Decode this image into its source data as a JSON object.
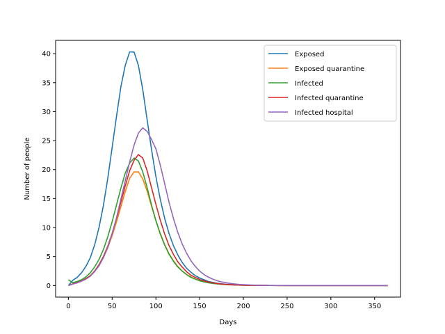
{
  "chart_data": {
    "type": "line",
    "xlabel": "Days",
    "ylabel": "Number of people",
    "xlim": [
      -14.6,
      379.6
    ],
    "ylim": [
      -2.0,
      42.3
    ],
    "xticks": [
      0,
      50,
      100,
      150,
      200,
      250,
      300,
      350
    ],
    "yticks": [
      0,
      5,
      10,
      15,
      20,
      25,
      30,
      35,
      40
    ],
    "grid": false,
    "legend_position": "top-right",
    "x": [
      0,
      5,
      10,
      15,
      20,
      25,
      30,
      35,
      40,
      45,
      50,
      55,
      60,
      65,
      70,
      75,
      80,
      85,
      90,
      95,
      100,
      105,
      110,
      115,
      120,
      125,
      130,
      135,
      140,
      145,
      150,
      155,
      160,
      165,
      170,
      175,
      180,
      185,
      190,
      195,
      200,
      210,
      220,
      230,
      240,
      250,
      260,
      270,
      280,
      290,
      300,
      310,
      320,
      330,
      340,
      350,
      360,
      365
    ],
    "series": [
      {
        "name": "Exposed",
        "color": "#1f77b4",
        "values": [
          0.0,
          0.9,
          1.4,
          2.2,
          3.3,
          4.8,
          7.0,
          10.0,
          13.8,
          18.5,
          23.8,
          29.2,
          34.3,
          38.0,
          40.3,
          40.3,
          38.0,
          33.8,
          28.6,
          23.5,
          18.8,
          14.9,
          11.6,
          9.0,
          6.9,
          5.3,
          4.0,
          3.0,
          2.3,
          1.7,
          1.3,
          1.0,
          0.7,
          0.55,
          0.4,
          0.3,
          0.22,
          0.17,
          0.12,
          0.09,
          0.07,
          0.04,
          0.02,
          0.01,
          0.01,
          0.0,
          0.0,
          0.0,
          0.0,
          0.0,
          0.0,
          0.0,
          0.0,
          0.0,
          0.0,
          0.0,
          0.0,
          0.0
        ]
      },
      {
        "name": "Exposed quarantine",
        "color": "#ff7f0e",
        "values": [
          0.0,
          0.3,
          0.5,
          0.8,
          1.2,
          1.7,
          2.5,
          3.5,
          4.8,
          6.5,
          8.6,
          11.0,
          13.6,
          16.2,
          18.5,
          19.6,
          19.6,
          18.4,
          16.3,
          13.7,
          11.2,
          9.0,
          7.1,
          5.5,
          4.3,
          3.3,
          2.5,
          1.9,
          1.5,
          1.1,
          0.85,
          0.65,
          0.5,
          0.38,
          0.29,
          0.22,
          0.17,
          0.13,
          0.1,
          0.07,
          0.05,
          0.03,
          0.02,
          0.01,
          0.0,
          0.0,
          0.0,
          0.0,
          0.0,
          0.0,
          0.0,
          0.0,
          0.0,
          0.0,
          0.0,
          0.0,
          0.0,
          0.0
        ]
      },
      {
        "name": "Infected",
        "color": "#2ca02c",
        "values": [
          1.0,
          0.5,
          0.7,
          1.0,
          1.5,
          2.2,
          3.2,
          4.5,
          6.2,
          8.4,
          11.0,
          13.9,
          16.8,
          19.4,
          21.1,
          22.0,
          21.5,
          19.6,
          16.9,
          13.9,
          11.2,
          8.9,
          7.0,
          5.4,
          4.2,
          3.2,
          2.5,
          1.9,
          1.4,
          1.1,
          0.83,
          0.63,
          0.48,
          0.36,
          0.28,
          0.21,
          0.16,
          0.12,
          0.09,
          0.07,
          0.05,
          0.03,
          0.02,
          0.01,
          0.0,
          0.0,
          0.0,
          0.0,
          0.0,
          0.0,
          0.0,
          0.0,
          0.0,
          0.0,
          0.0,
          0.0,
          0.0,
          0.0
        ]
      },
      {
        "name": "Infected quarantine",
        "color": "#d62728",
        "values": [
          0.0,
          0.3,
          0.5,
          0.8,
          1.2,
          1.7,
          2.5,
          3.6,
          5.0,
          6.8,
          9.0,
          11.6,
          14.4,
          17.2,
          19.8,
          21.6,
          22.6,
          22.0,
          19.8,
          16.9,
          14.0,
          11.3,
          8.9,
          6.9,
          5.4,
          4.1,
          3.2,
          2.4,
          1.8,
          1.4,
          1.05,
          0.8,
          0.6,
          0.46,
          0.35,
          0.26,
          0.2,
          0.15,
          0.11,
          0.08,
          0.06,
          0.03,
          0.02,
          0.01,
          0.0,
          0.0,
          0.0,
          0.0,
          0.0,
          0.0,
          0.0,
          0.0,
          0.0,
          0.0,
          0.0,
          0.0,
          0.0,
          0.0
        ]
      },
      {
        "name": "Infected hospital",
        "color": "#9467bd",
        "values": [
          0.0,
          0.25,
          0.45,
          0.75,
          1.1,
          1.6,
          2.4,
          3.4,
          4.8,
          6.6,
          8.9,
          11.7,
          14.9,
          18.1,
          21.3,
          24.2,
          26.3,
          27.2,
          26.6,
          25.2,
          23.6,
          20.8,
          17.6,
          14.4,
          11.6,
          9.2,
          7.2,
          5.6,
          4.3,
          3.3,
          2.5,
          1.9,
          1.45,
          1.1,
          0.83,
          0.63,
          0.48,
          0.36,
          0.27,
          0.2,
          0.15,
          0.08,
          0.04,
          0.02,
          0.01,
          0.0,
          0.0,
          0.0,
          0.0,
          0.0,
          0.0,
          0.0,
          0.0,
          0.0,
          0.0,
          0.0,
          0.0,
          0.0
        ]
      }
    ]
  }
}
